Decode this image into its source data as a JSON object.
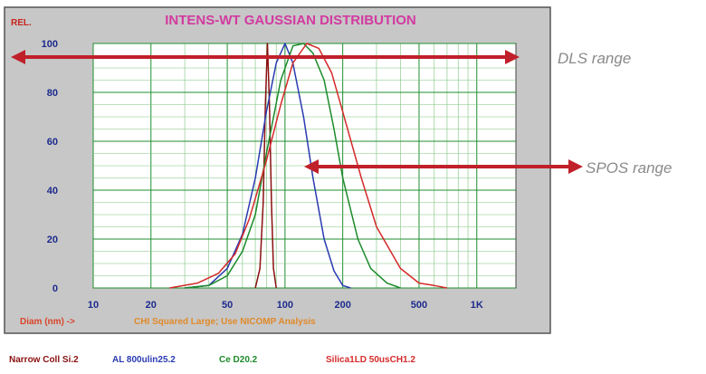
{
  "chart_data": {
    "type": "line",
    "title": "INTENS-WT GAUSSIAN DISTRIBUTION",
    "ylabel": "REL.",
    "xlabel": "Diam (nm) ->",
    "note": "CHI Squared Large; Use NICOMP Analysis",
    "x_scale": "log",
    "xlim": [
      10,
      1600
    ],
    "ylim": [
      0,
      100
    ],
    "x_tick_values": [
      10,
      20,
      50,
      100,
      200,
      500,
      1000
    ],
    "x_tick_labels": [
      "10",
      "20",
      "50",
      "100",
      "200",
      "500",
      "1K"
    ],
    "y_ticks": [
      0,
      20,
      40,
      60,
      80,
      100
    ],
    "grid": true,
    "legend_position": "bottom",
    "series": [
      {
        "name": "Narrow Coll Si.2",
        "color": "#8a1010",
        "x": [
          70,
          74,
          77,
          79,
          81,
          83,
          85,
          87,
          90
        ],
        "y": [
          0,
          8,
          35,
          75,
          100,
          75,
          35,
          8,
          0
        ]
      },
      {
        "name": "AL 800ulin25.2",
        "color": "#2a3ab0",
        "x": [
          30,
          40,
          50,
          60,
          70,
          80,
          90,
          100,
          110,
          125,
          140,
          160,
          180,
          200,
          220
        ],
        "y": [
          0,
          1,
          8,
          22,
          45,
          72,
          92,
          100,
          92,
          70,
          45,
          20,
          7,
          1,
          0
        ]
      },
      {
        "name": "Ce D20.2",
        "color": "#1c8a2a",
        "x": [
          30,
          40,
          50,
          60,
          70,
          80,
          95,
          110,
          125,
          140,
          160,
          180,
          200,
          240,
          280,
          340,
          400
        ],
        "y": [
          0,
          1,
          5,
          15,
          30,
          55,
          85,
          99,
          100,
          96,
          85,
          65,
          45,
          20,
          8,
          2,
          0
        ]
      },
      {
        "name": "Silica1LD 50usCH1.2",
        "color": "#d42a2a",
        "x": [
          25,
          35,
          45,
          55,
          65,
          80,
          95,
          110,
          130,
          150,
          175,
          200,
          250,
          300,
          400,
          500,
          600,
          700
        ],
        "y": [
          0,
          2,
          6,
          14,
          28,
          52,
          75,
          92,
          100,
          98,
          88,
          72,
          45,
          25,
          8,
          2,
          1,
          0
        ]
      }
    ]
  },
  "annotations": {
    "dls_label": "DLS range",
    "spos_label": "SPOS range",
    "arrow_color": "#c0202a"
  },
  "colors": {
    "panel_bg": "#c7c7c7",
    "plot_bg": "#ffffff",
    "grid_major": "#1f8f2f",
    "grid_minor": "#7cc37c"
  }
}
